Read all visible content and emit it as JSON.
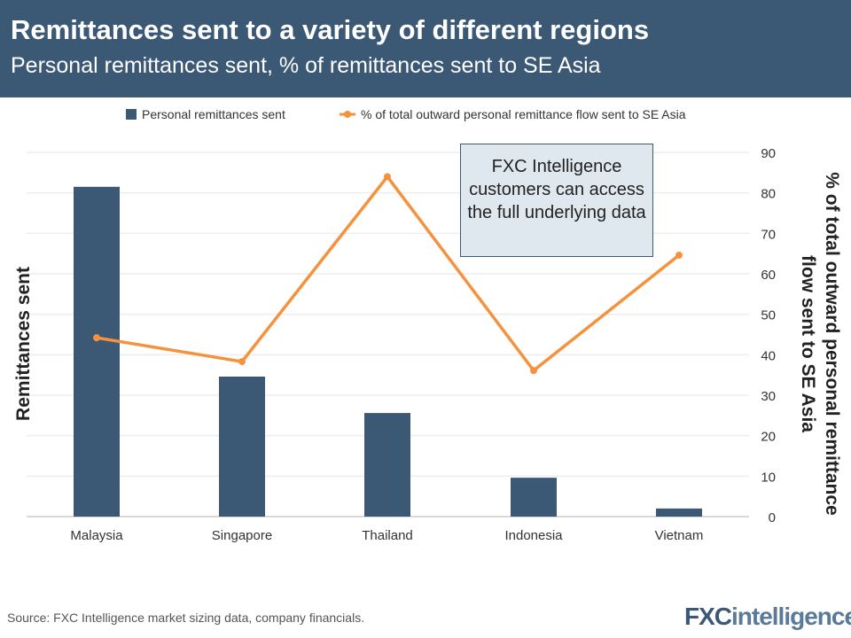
{
  "header": {
    "title": "Remittances sent to a variety of different regions",
    "subtitle": "Personal remittances sent, % of remittances sent to SE Asia"
  },
  "note": "FXC Intelligence customers can access the full underlying data",
  "footer": {
    "source": "Source: FXC Intelligence market sizing data, company financials.",
    "logo": "FXCintelligence"
  },
  "colors": {
    "bar": "#3b5875",
    "line": "#f5923e",
    "header": "#3b5875"
  },
  "chart_data": {
    "type": "bar+line",
    "categories": [
      "Malaysia",
      "Singapore",
      "Thailand",
      "Indonesia",
      "Vietnam"
    ],
    "series": [
      {
        "name": "Personal remittances sent",
        "type": "bar",
        "axis": "left",
        "values": [
          81.5,
          34.6,
          25.6,
          9.6,
          2.0
        ]
      },
      {
        "name": "% of total outward personal remittance flow sent to SE Asia",
        "type": "line",
        "axis": "right",
        "values": [
          44.2,
          38.3,
          84.0,
          36.1,
          64.6
        ]
      }
    ],
    "ylabel_left": "Remittances sent",
    "ylabel_right": [
      "% of total outward personal remittance",
      "flow sent  to SE Asia"
    ],
    "y_right_ticks": [
      "0",
      "10",
      "20",
      "30",
      "40",
      "50",
      "60",
      "70",
      "80",
      "90"
    ],
    "ylim": [
      0,
      90
    ],
    "grid": true,
    "legend": "top"
  }
}
